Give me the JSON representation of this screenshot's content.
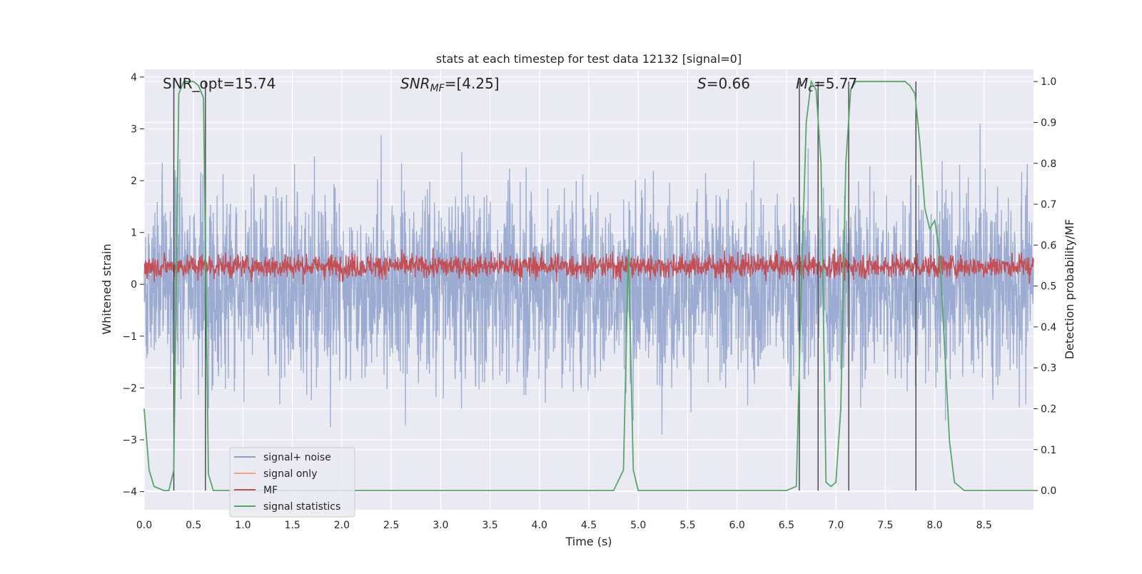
{
  "chart_data": {
    "type": "line",
    "title": "stats at each timestep for test data 12132 [signal=0]",
    "xlabel": "Time (s)",
    "ylabel": "Whitened strain",
    "y2label": "Detection probability/MF",
    "xlim": [
      0.0,
      9.0
    ],
    "ylim": [
      -4.35,
      4.15
    ],
    "y2lim": [
      -0.047,
      1.03
    ],
    "xticks": [
      "0.0",
      "0.5",
      "1.0",
      "1.5",
      "2.0",
      "2.5",
      "3.0",
      "3.5",
      "4.0",
      "4.5",
      "5.0",
      "5.5",
      "6.0",
      "6.5",
      "7.0",
      "7.5",
      "8.0",
      "8.5"
    ],
    "yticks": [
      "4",
      "3",
      "2",
      "1",
      "0",
      "−1",
      "−2",
      "−3",
      "−4"
    ],
    "y2ticks": [
      "1.0",
      "0.9",
      "0.8",
      "0.7",
      "0.6",
      "0.5",
      "0.4",
      "0.3",
      "0.2",
      "0.1",
      "0.0"
    ],
    "grid": true,
    "legend_position": "lower-left",
    "annotations": {
      "snr_opt": "SNR_opt=15.74",
      "snr_mf": "=[4.25]",
      "snr_mf_symbol": "SNR",
      "snr_mf_sub": "MF",
      "s_stat": "=0.66",
      "s_symbol": "S",
      "mc": "=5.77",
      "mc_symbol": "M",
      "mc_sub": "c"
    },
    "series": [
      {
        "name": "signal+ noise",
        "color": "#8da0cb",
        "axis": "left",
        "noise_envelope_std": 0.95,
        "peak_range": [
          -4.0,
          3.45
        ]
      },
      {
        "name": "signal only",
        "color": "#f4a582",
        "axis": "left",
        "values": []
      },
      {
        "name": "MF",
        "color": "#c44e52",
        "axis": "left",
        "range": [
          0.0,
          0.85
        ],
        "mean": 0.35
      },
      {
        "name": "signal statistics",
        "color": "#55a868",
        "axis": "right",
        "x": [
          0.0,
          0.05,
          0.1,
          0.2,
          0.25,
          0.3,
          0.35,
          0.4,
          0.45,
          0.5,
          0.55,
          0.6,
          0.65,
          0.7,
          0.75,
          0.8,
          1.0,
          2.0,
          3.0,
          4.0,
          4.5,
          4.75,
          4.85,
          4.9,
          4.95,
          5.0,
          5.5,
          6.0,
          6.5,
          6.6,
          6.65,
          6.7,
          6.75,
          6.8,
          6.85,
          6.9,
          6.95,
          7.0,
          7.05,
          7.1,
          7.15,
          7.2,
          7.25,
          7.3,
          7.5,
          7.7,
          7.75,
          7.8,
          7.85,
          7.9,
          7.95,
          8.0,
          8.05,
          8.1,
          8.15,
          8.2,
          8.25,
          8.3,
          8.35,
          8.5,
          9.0
        ],
        "y": [
          0.2,
          0.05,
          0.01,
          0.0,
          0.0,
          0.05,
          0.97,
          1.0,
          1.0,
          1.0,
          0.99,
          0.96,
          0.04,
          0.0,
          0.0,
          0.0,
          0.0,
          0.0,
          0.0,
          0.0,
          0.0,
          0.0,
          0.05,
          0.59,
          0.05,
          0.0,
          0.0,
          0.0,
          0.0,
          0.01,
          0.5,
          0.9,
          1.0,
          0.98,
          0.8,
          0.02,
          0.01,
          0.02,
          0.2,
          0.8,
          0.98,
          1.0,
          1.0,
          1.0,
          1.0,
          1.0,
          0.99,
          0.97,
          0.85,
          0.69,
          0.64,
          0.66,
          0.58,
          0.35,
          0.12,
          0.02,
          0.01,
          0.0,
          0.0,
          0.0,
          0.0
        ]
      }
    ],
    "vertical_markers": [
      0.3,
      0.62,
      6.63,
      6.82,
      7.13,
      7.81
    ]
  }
}
